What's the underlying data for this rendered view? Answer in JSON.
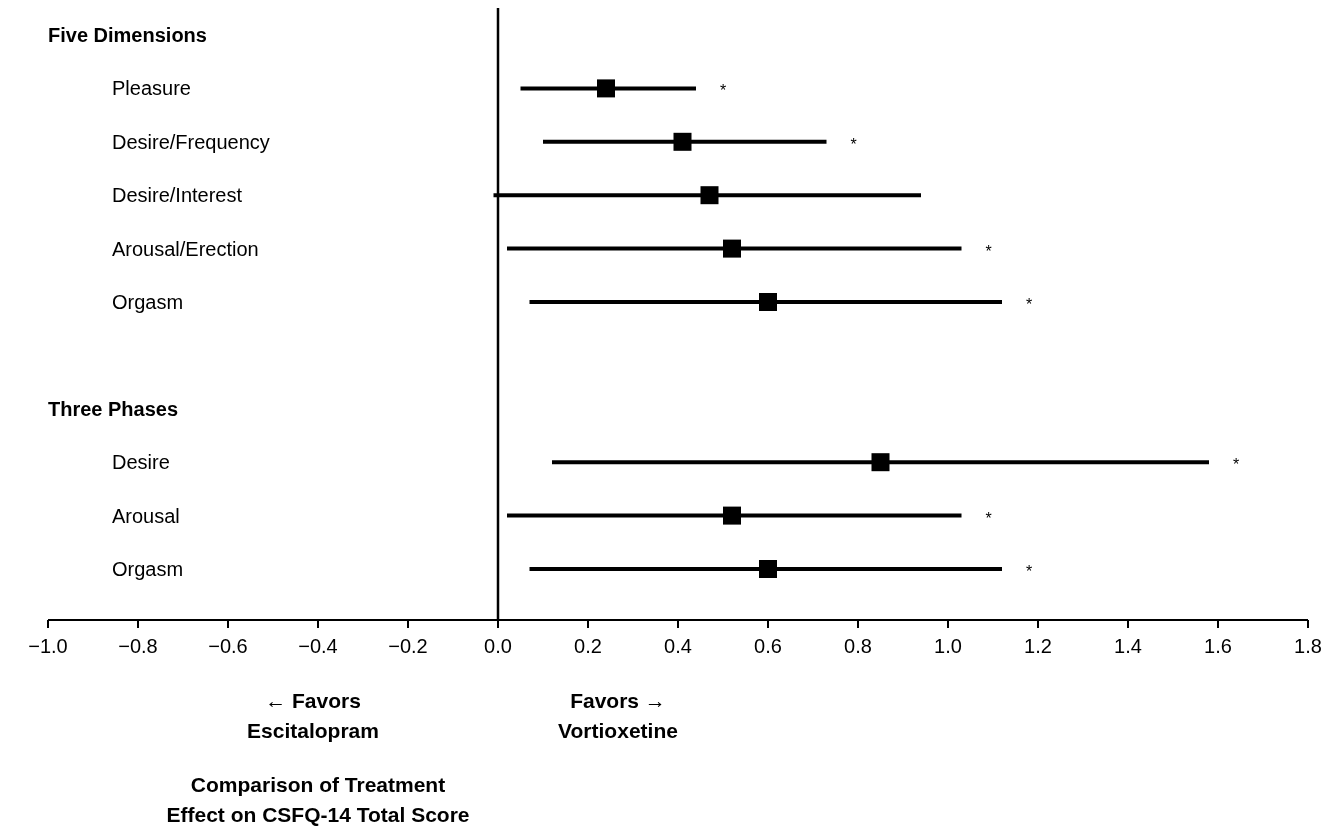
{
  "chart_data": {
    "type": "scatter",
    "orientation": "horizontal",
    "marker": "square",
    "categories": [
      "Five Dimensions",
      "Pleasure",
      "Desire/Frequency",
      "Desire/Interest",
      "Arousal/Erection",
      "Orgasm",
      null,
      "Three Phases",
      "Desire",
      "Arousal",
      "Orgasm"
    ],
    "series": [
      {
        "color": "#000000",
        "values": [
          null,
          0.24,
          0.41,
          0.47,
          0.52,
          0.6,
          null,
          null,
          0.85,
          0.52,
          0.6
        ],
        "errors": [
          null,
          [
            0.05,
            0.44
          ],
          [
            0.1,
            0.73
          ],
          [
            -0.01,
            0.94
          ],
          [
            0.02,
            1.03
          ],
          [
            0.07,
            1.12
          ],
          null,
          null,
          [
            0.12,
            1.58
          ],
          [
            0.02,
            1.03
          ],
          [
            0.07,
            1.12
          ]
        ]
      }
    ],
    "xlim": [
      -1.0,
      1.8
    ],
    "xticks": [
      {
        "value": -1.0,
        "label": "−1.0"
      },
      {
        "value": -0.8,
        "label": "−0.8"
      },
      {
        "value": -0.6,
        "label": "−0.6"
      },
      {
        "value": -0.4,
        "label": "−0.4"
      },
      {
        "value": -0.2,
        "label": "−0.2"
      },
      {
        "value": 0,
        "label": "0.0"
      },
      {
        "value": 0.2,
        "label": "0.2"
      },
      {
        "value": 0.4,
        "label": "0.4"
      },
      {
        "value": 0.6,
        "label": "0.6"
      },
      {
        "value": 0.8,
        "label": "0.8"
      },
      {
        "value": 1.0,
        "label": "1.0"
      },
      {
        "value": 1.2,
        "label": "1.2"
      },
      {
        "value": 1.4,
        "label": "1.4"
      },
      {
        "value": 1.6,
        "label": "1.6"
      },
      {
        "value": 1.8,
        "label": "1.8"
      }
    ],
    "ref_lines": [
      {
        "axis": "x",
        "value": 0,
        "color": "#000000"
      }
    ],
    "annotations": [
      "← Favors\nEscitalopram",
      "Favors →\nVortioxetine",
      "Comparison of Treatment\nEffect on CSFQ-14 Total Score",
      "*",
      "*",
      "*",
      "*",
      "*",
      "*",
      "*"
    ]
  }
}
